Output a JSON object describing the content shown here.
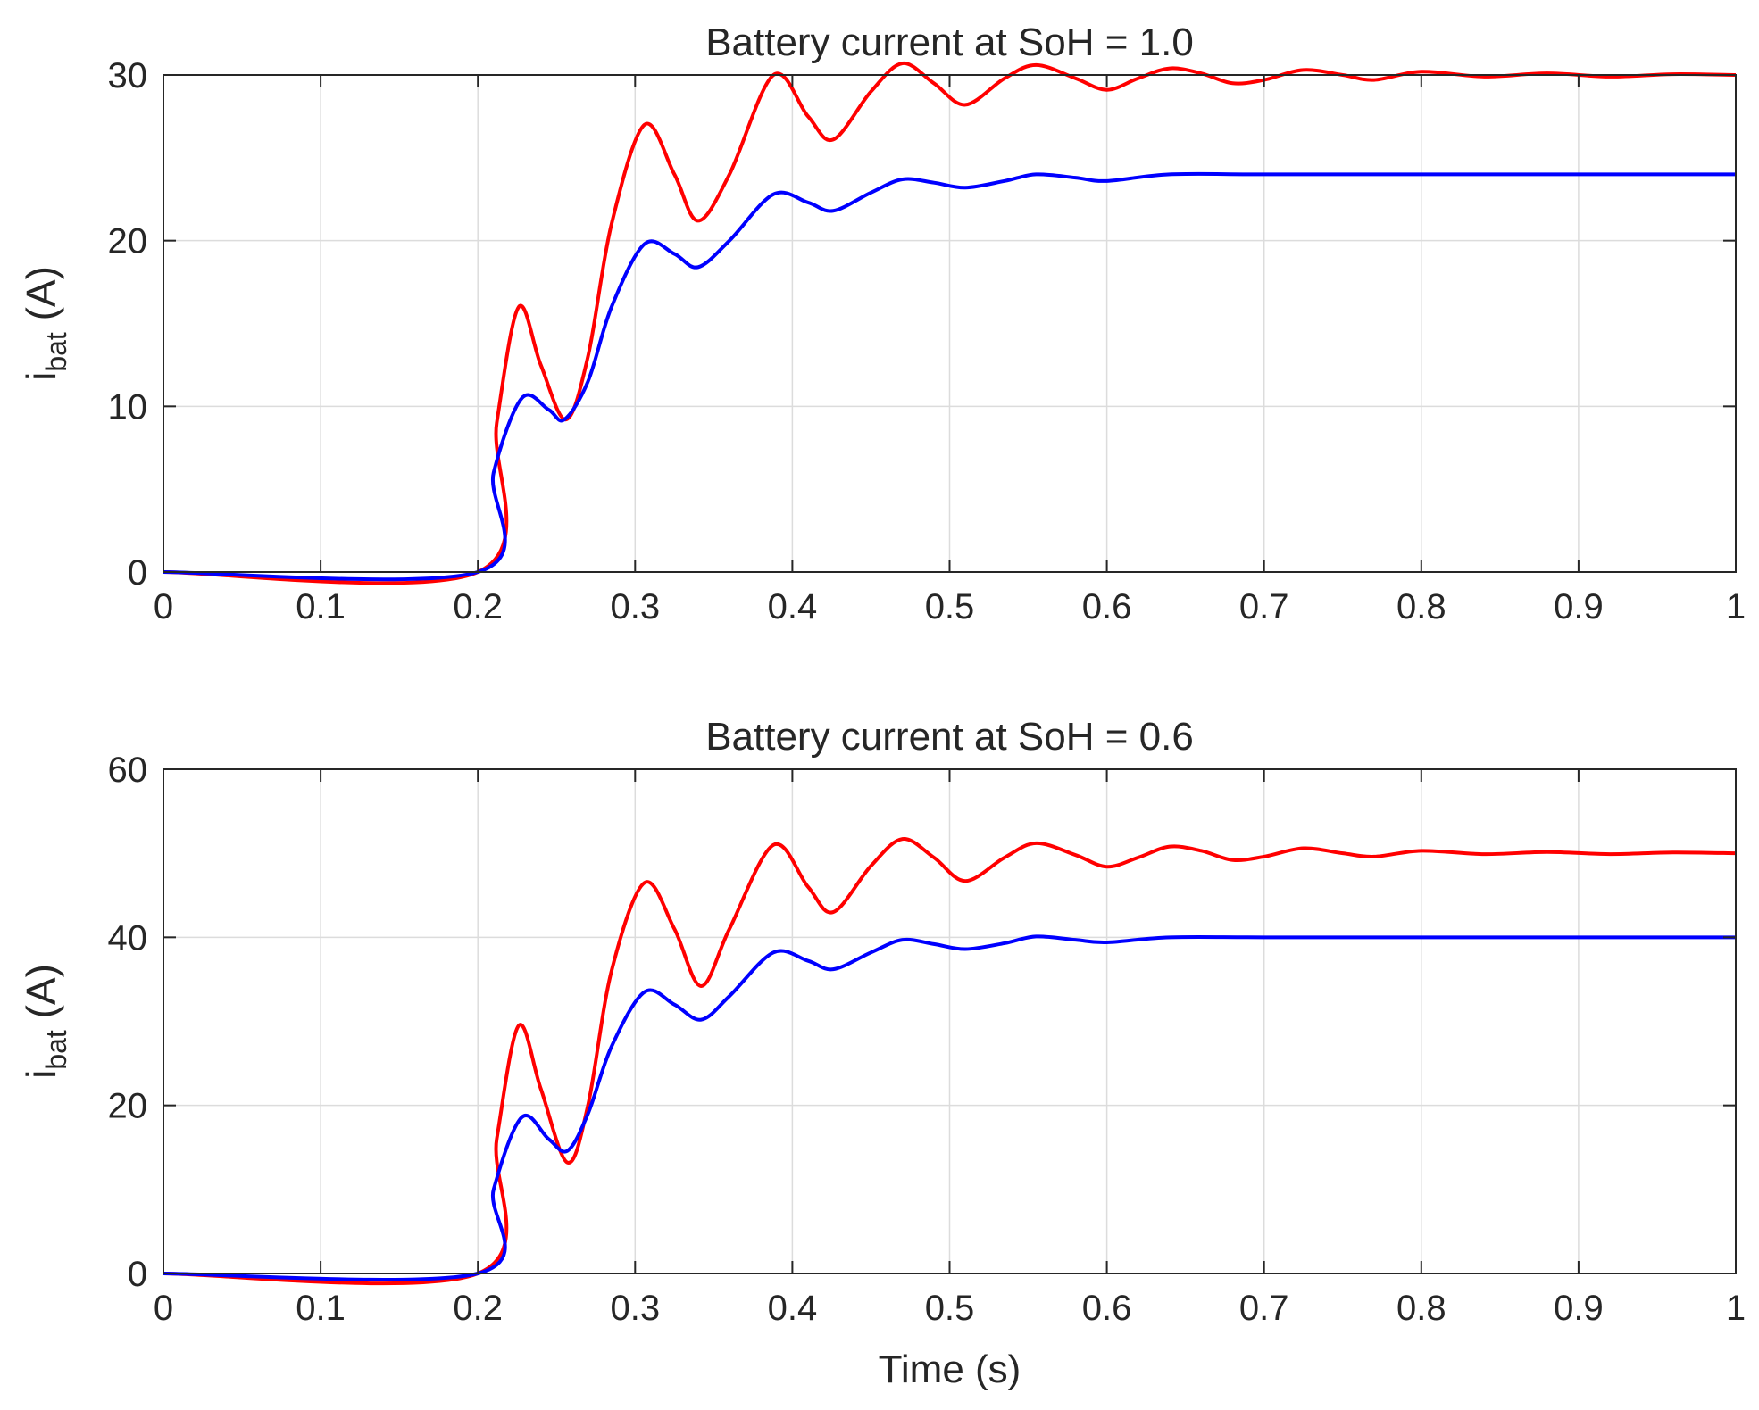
{
  "chart_data": [
    {
      "type": "line",
      "title": "Battery current at SoH = 1.0",
      "xlabel": "",
      "ylabel": {
        "main": "i",
        "sub": "bat",
        "unit": "(A)"
      },
      "xlim": [
        0,
        1
      ],
      "ylim": [
        0,
        30
      ],
      "xticks": [
        "0",
        "0.1",
        "0.2",
        "0.3",
        "0.4",
        "0.5",
        "0.6",
        "0.7",
        "0.8",
        "0.9",
        "1"
      ],
      "yticks": [
        "0",
        "10",
        "20",
        "30"
      ],
      "grid": true,
      "series": [
        {
          "color": "#ff0000",
          "x": [
            0,
            0.2,
            0.212,
            0.226,
            0.24,
            0.256,
            0.27,
            0.285,
            0.306,
            0.325,
            0.34,
            0.36,
            0.388,
            0.41,
            0.426,
            0.45,
            0.47,
            0.49,
            0.51,
            0.535,
            0.555,
            0.58,
            0.6,
            0.62,
            0.64,
            0.66,
            0.68,
            0.7,
            0.725,
            0.75,
            0.77,
            0.8,
            0.84,
            0.88,
            0.92,
            0.96,
            1.0
          ],
          "y": [
            0,
            0,
            9,
            16,
            12.5,
            9.2,
            13,
            21,
            27,
            24,
            21.2,
            24,
            30,
            27.5,
            26.1,
            29,
            30.7,
            29.5,
            28.2,
            29.8,
            30.6,
            29.8,
            29.1,
            29.8,
            30.4,
            30.1,
            29.5,
            29.7,
            30.3,
            30.0,
            29.7,
            30.2,
            29.9,
            30.1,
            29.9,
            30.05,
            30
          ]
        },
        {
          "color": "#0000ff",
          "x": [
            0,
            0.2,
            0.21,
            0.228,
            0.245,
            0.255,
            0.27,
            0.285,
            0.306,
            0.325,
            0.34,
            0.36,
            0.388,
            0.41,
            0.426,
            0.45,
            0.47,
            0.49,
            0.51,
            0.535,
            0.555,
            0.58,
            0.6,
            0.64,
            0.7,
            0.8,
            1.0
          ],
          "y": [
            0,
            0,
            6,
            10.5,
            9.8,
            9.2,
            11.5,
            16,
            19.8,
            19.2,
            18.4,
            20,
            22.8,
            22.3,
            21.8,
            22.9,
            23.7,
            23.5,
            23.2,
            23.6,
            24.0,
            23.8,
            23.6,
            24.0,
            24.0,
            24,
            24
          ]
        }
      ]
    },
    {
      "type": "line",
      "title": "Battery current at SoH = 0.6",
      "xlabel": "Time (s)",
      "ylabel": {
        "main": "i",
        "sub": "bat",
        "unit": "(A)"
      },
      "xlim": [
        0,
        1
      ],
      "ylim": [
        0,
        60
      ],
      "xticks": [
        "0",
        "0.1",
        "0.2",
        "0.3",
        "0.4",
        "0.5",
        "0.6",
        "0.7",
        "0.8",
        "0.9",
        "1"
      ],
      "yticks": [
        "0",
        "20",
        "40",
        "60"
      ],
      "grid": true,
      "series": [
        {
          "color": "#ff0000",
          "x": [
            0,
            0.2,
            0.212,
            0.226,
            0.24,
            0.257,
            0.27,
            0.285,
            0.306,
            0.325,
            0.342,
            0.36,
            0.388,
            0.41,
            0.426,
            0.45,
            0.47,
            0.49,
            0.51,
            0.535,
            0.555,
            0.58,
            0.6,
            0.62,
            0.64,
            0.66,
            0.68,
            0.7,
            0.725,
            0.75,
            0.77,
            0.8,
            0.84,
            0.88,
            0.92,
            0.96,
            1.0
          ],
          "y": [
            0,
            0,
            16,
            29.5,
            22,
            13.2,
            20,
            36,
            46.5,
            41,
            34.2,
            41,
            51,
            46,
            43,
            48.5,
            51.7,
            49.5,
            46.7,
            49.5,
            51.2,
            49.8,
            48.4,
            49.5,
            50.8,
            50.3,
            49.2,
            49.6,
            50.6,
            50.0,
            49.6,
            50.3,
            49.9,
            50.15,
            49.9,
            50.1,
            50
          ]
        },
        {
          "color": "#0000ff",
          "x": [
            0,
            0.2,
            0.21,
            0.228,
            0.245,
            0.257,
            0.27,
            0.285,
            0.306,
            0.325,
            0.342,
            0.36,
            0.388,
            0.41,
            0.426,
            0.45,
            0.47,
            0.49,
            0.51,
            0.535,
            0.555,
            0.58,
            0.6,
            0.64,
            0.7,
            0.8,
            1.0
          ],
          "y": [
            0,
            0,
            10,
            18.6,
            16,
            14.6,
            19,
            27,
            33.5,
            32,
            30.2,
            33,
            38.2,
            37.2,
            36.2,
            38.2,
            39.7,
            39.2,
            38.6,
            39.3,
            40.1,
            39.7,
            39.4,
            40.0,
            40.0,
            40,
            40
          ]
        }
      ]
    }
  ]
}
